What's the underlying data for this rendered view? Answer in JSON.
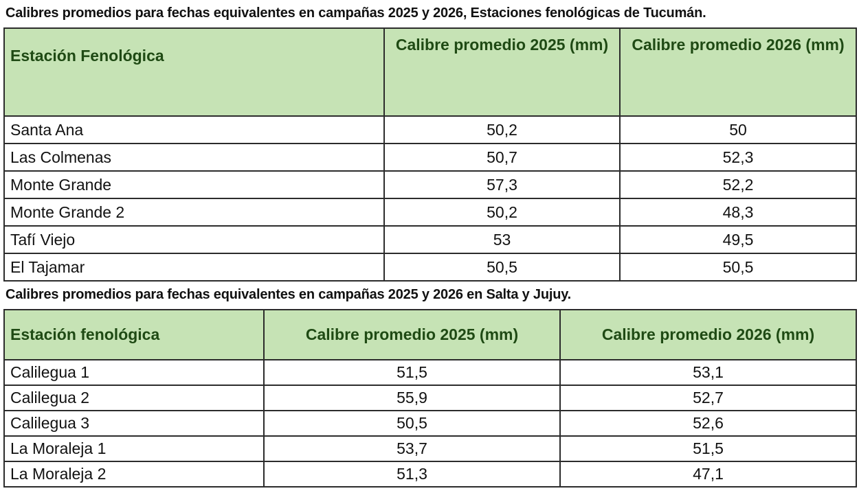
{
  "table1": {
    "title": "Calibres promedios para fechas equivalentes en campañas 2025 y 2026,  Estaciones fenológicas de Tucumán.",
    "headers": [
      "Estación Fenológica",
      "Calibre promedio 2025 (mm)",
      "Calibre promedio 2026 (mm)"
    ],
    "rows": [
      [
        "Santa Ana",
        "50,2",
        "50"
      ],
      [
        "Las Colmenas",
        "50,7",
        "52,3"
      ],
      [
        "Monte Grande",
        "57,3",
        "52,2"
      ],
      [
        "Monte Grande 2",
        "50,2",
        "48,3"
      ],
      [
        "Tafí Viejo",
        "53",
        "49,5"
      ],
      [
        "El Tajamar",
        "50,5",
        "50,5"
      ]
    ]
  },
  "table2": {
    "title": "Calibres promedios para fechas equivalentes en campañas 2025 y 2026 en Salta y Jujuy.",
    "headers": [
      "Estación fenológica",
      "Calibre promedio 2025 (mm)",
      "Calibre promedio 2026 (mm)"
    ],
    "rows": [
      [
        "Calilegua 1",
        "51,5",
        "53,1"
      ],
      [
        "Calilegua 2",
        "55,9",
        "52,7"
      ],
      [
        "Calilegua 3",
        "50,5",
        "52,6"
      ],
      [
        "La Moraleja 1",
        "53,7",
        "51,5"
      ],
      [
        "La Moraleja 2",
        "51,3",
        "47,1"
      ]
    ]
  },
  "colors": {
    "header_bg": "#c6e3b5",
    "header_text": "#1f4a14",
    "border": "#2b2b2b"
  }
}
